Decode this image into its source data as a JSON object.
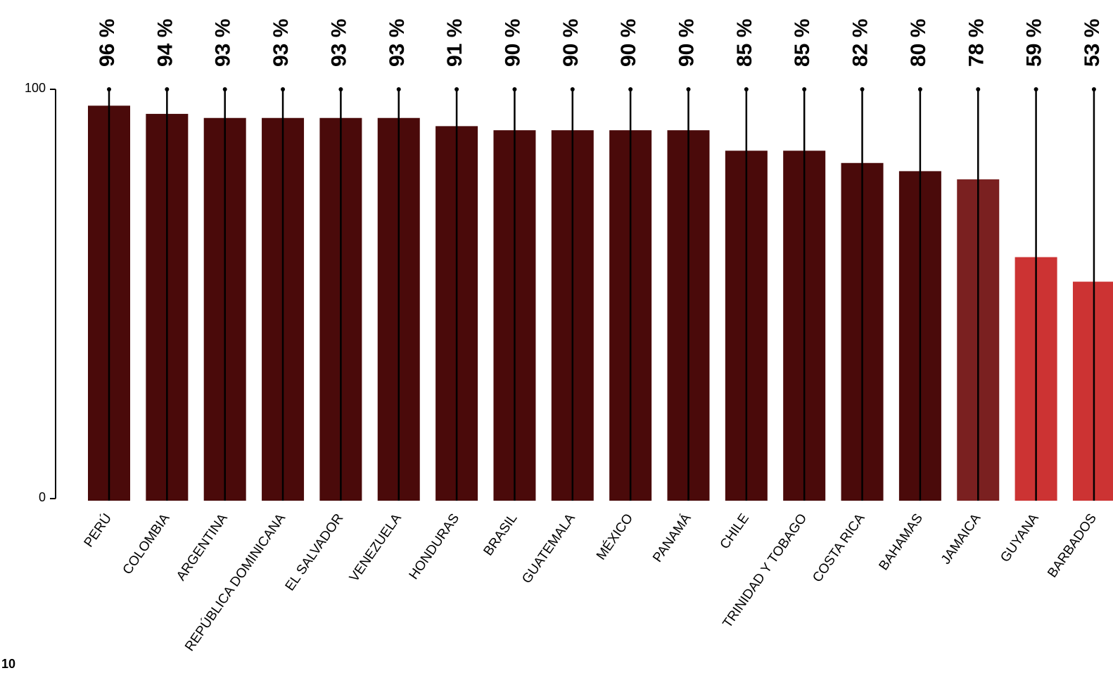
{
  "chart_data": {
    "type": "bar",
    "categories": [
      "PERÚ",
      "COLOMBIA",
      "ARGENTINA",
      "REPÚBLICA DOMINICANA",
      "EL SALVADOR",
      "VENEZUELA",
      "HONDURAS",
      "BRASIL",
      "GUATEMALA",
      "MÉXICO",
      "PANAMÁ",
      "CHILE",
      "TRINIDAD Y TOBAGO",
      "COSTA RICA",
      "BAHAMAS",
      "JAMAICA",
      "GUYANA",
      "BARBADOS"
    ],
    "values": [
      96,
      94,
      93,
      93,
      93,
      93,
      91,
      90,
      90,
      90,
      90,
      85,
      85,
      82,
      80,
      78,
      59,
      53
    ],
    "value_labels": [
      "96 %",
      "94 %",
      "93 %",
      "93 %",
      "93 %",
      "93 %",
      "91 %",
      "90 %",
      "90 %",
      "90 %",
      "90 %",
      "85 %",
      "85 %",
      "82 %",
      "80 %",
      "78 %",
      "59 %",
      "53 %"
    ],
    "colors": [
      "#4a0a0a",
      "#4a0a0a",
      "#4a0a0a",
      "#4a0a0a",
      "#4a0a0a",
      "#4a0a0a",
      "#4a0a0a",
      "#4a0a0a",
      "#4a0a0a",
      "#4a0a0a",
      "#4a0a0a",
      "#4a0a0a",
      "#4a0a0a",
      "#4a0a0a",
      "#4a0a0a",
      "#7a2020",
      "#cc3333",
      "#cc3333"
    ],
    "ylim": [
      0,
      100
    ],
    "yticks": [
      0,
      100
    ],
    "ytick_labels": [
      "0",
      "100"
    ],
    "grid": false,
    "title": "",
    "xlabel": "",
    "ylabel": ""
  },
  "footnote": "10"
}
